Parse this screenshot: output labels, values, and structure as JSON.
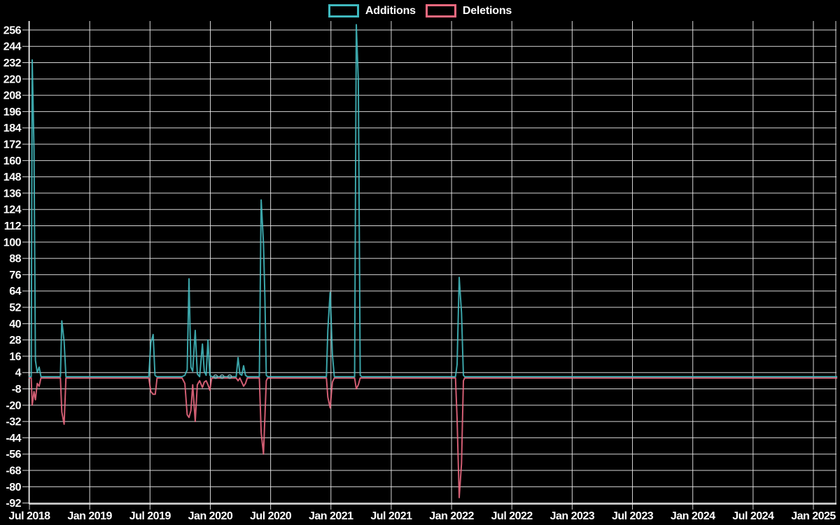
{
  "legend": {
    "items": [
      {
        "label": "Additions",
        "color": "#3fb9bf"
      },
      {
        "label": "Deletions",
        "color": "#f4697f"
      }
    ]
  },
  "colors": {
    "background": "#000000",
    "gridline": "#e9e9e9",
    "axis_text": "#ffffff",
    "additions": "#45c1c6",
    "deletions": "#f46d86",
    "baseline_overlap": "#9cc0c3",
    "marker": "#86aeb2"
  },
  "chart_data": {
    "type": "line",
    "title": "",
    "xlabel": "",
    "ylabel": "",
    "grid": true,
    "legend_position": "top-center",
    "x_axis": {
      "tick_labels": [
        "Jul 2018",
        "Jan 2019",
        "Jul 2019",
        "Jan 2020",
        "Jul 2020",
        "Jan 2021",
        "Jul 2021",
        "Jan 2022",
        "Jul 2022",
        "Jan 2023",
        "Jul 2023",
        "Jan 2024",
        "Jul 2024",
        "Jan 2025"
      ],
      "weeks_per_tick_interval": 26.07,
      "x_unit": "weeks since Jul 2018 tick",
      "x_range_weeks": [
        0,
        349
      ]
    },
    "y_axis": {
      "ticks": [
        256,
        244,
        232,
        220,
        208,
        196,
        184,
        172,
        160,
        148,
        136,
        124,
        112,
        100,
        88,
        76,
        64,
        52,
        40,
        28,
        16,
        4,
        -8,
        -20,
        -32,
        -44,
        -56,
        -68,
        -80,
        -92
      ],
      "ylim": [
        -93.2,
        262.5
      ]
    },
    "series": [
      {
        "name": "Additions",
        "color": "#45c1c6",
        "points": [
          [
            0,
            1
          ],
          [
            0.8,
            1
          ],
          [
            1.2,
            234
          ],
          [
            2,
            168
          ],
          [
            2.6,
            13
          ],
          [
            3.4,
            4
          ],
          [
            4.2,
            8
          ],
          [
            5,
            1
          ],
          [
            13.4,
            1
          ],
          [
            14,
            42
          ],
          [
            15,
            27
          ],
          [
            15.8,
            1
          ],
          [
            51.6,
            1
          ],
          [
            52.5,
            26
          ],
          [
            53.5,
            32
          ],
          [
            54.3,
            2
          ],
          [
            55,
            1
          ],
          [
            66,
            1
          ],
          [
            67.2,
            2
          ],
          [
            68.2,
            6
          ],
          [
            69,
            73
          ],
          [
            69.8,
            8
          ],
          [
            70.6,
            5
          ],
          [
            71.7,
            35
          ],
          [
            72.6,
            3
          ],
          [
            73.6,
            1
          ],
          [
            74.8,
            25
          ],
          [
            75.6,
            5
          ],
          [
            76.4,
            2
          ],
          [
            77.2,
            28
          ],
          [
            78,
            2
          ],
          [
            78.8,
            1
          ],
          [
            89.4,
            1
          ],
          [
            90.2,
            15
          ],
          [
            91,
            3
          ],
          [
            91.8,
            2
          ],
          [
            92.6,
            9
          ],
          [
            93.4,
            2
          ],
          [
            94.2,
            1
          ],
          [
            99.4,
            1
          ],
          [
            100.2,
            131
          ],
          [
            101.2,
            99
          ],
          [
            101.8,
            60
          ],
          [
            102.4,
            2
          ],
          [
            103,
            1
          ],
          [
            128.4,
            1
          ],
          [
            129,
            35
          ],
          [
            130,
            63
          ],
          [
            131,
            17
          ],
          [
            131.8,
            1
          ],
          [
            140.6,
            1
          ],
          [
            141.3,
            260
          ],
          [
            142.2,
            219
          ],
          [
            143,
            2
          ],
          [
            143.6,
            1
          ],
          [
            184.2,
            1
          ],
          [
            184.9,
            10
          ],
          [
            185.8,
            74
          ],
          [
            186.8,
            48
          ],
          [
            187.6,
            2
          ],
          [
            188.2,
            1
          ],
          [
            349,
            1
          ]
        ]
      },
      {
        "name": "Deletions",
        "color": "#f46d86",
        "points": [
          [
            0,
            0
          ],
          [
            0.8,
            0
          ],
          [
            1.2,
            -20
          ],
          [
            2,
            -10
          ],
          [
            2.6,
            -16
          ],
          [
            3.4,
            -4
          ],
          [
            4.2,
            -6
          ],
          [
            5,
            0
          ],
          [
            13.4,
            0
          ],
          [
            14,
            -25
          ],
          [
            15,
            -34
          ],
          [
            15.8,
            0
          ],
          [
            51.6,
            0
          ],
          [
            52.5,
            -10
          ],
          [
            53.5,
            -12
          ],
          [
            54.4,
            -12
          ],
          [
            55.2,
            0
          ],
          [
            66,
            0
          ],
          [
            67.2,
            -4
          ],
          [
            68.2,
            -27
          ],
          [
            69,
            -29
          ],
          [
            69.8,
            -24
          ],
          [
            70.6,
            -5
          ],
          [
            71.7,
            -32
          ],
          [
            72.6,
            -5
          ],
          [
            73.6,
            -2
          ],
          [
            74.8,
            -7
          ],
          [
            75.6,
            -3
          ],
          [
            76.4,
            -2
          ],
          [
            77.2,
            -5
          ],
          [
            78,
            -9
          ],
          [
            78.8,
            0
          ],
          [
            89.4,
            0
          ],
          [
            90.2,
            -2
          ],
          [
            91,
            0
          ],
          [
            92.6,
            -6
          ],
          [
            93.4,
            -4
          ],
          [
            94.2,
            0
          ],
          [
            99.4,
            0
          ],
          [
            100.2,
            -40
          ],
          [
            101.2,
            -56
          ],
          [
            102.4,
            -2
          ],
          [
            103,
            0
          ],
          [
            128.4,
            0
          ],
          [
            129,
            -14
          ],
          [
            130,
            -22
          ],
          [
            131,
            -3
          ],
          [
            131.8,
            0
          ],
          [
            140.6,
            0
          ],
          [
            141.3,
            -8
          ],
          [
            142.2,
            -5
          ],
          [
            143,
            0
          ],
          [
            184.2,
            0
          ],
          [
            184.9,
            -30
          ],
          [
            185.8,
            -88
          ],
          [
            186.8,
            -63
          ],
          [
            187.6,
            -2
          ],
          [
            188.2,
            0
          ],
          [
            349,
            0
          ]
        ]
      }
    ],
    "point_markers": {
      "weeks": [
        80.5,
        83.3,
        86.6
      ],
      "value": 1,
      "color": "#86aeb2"
    }
  }
}
